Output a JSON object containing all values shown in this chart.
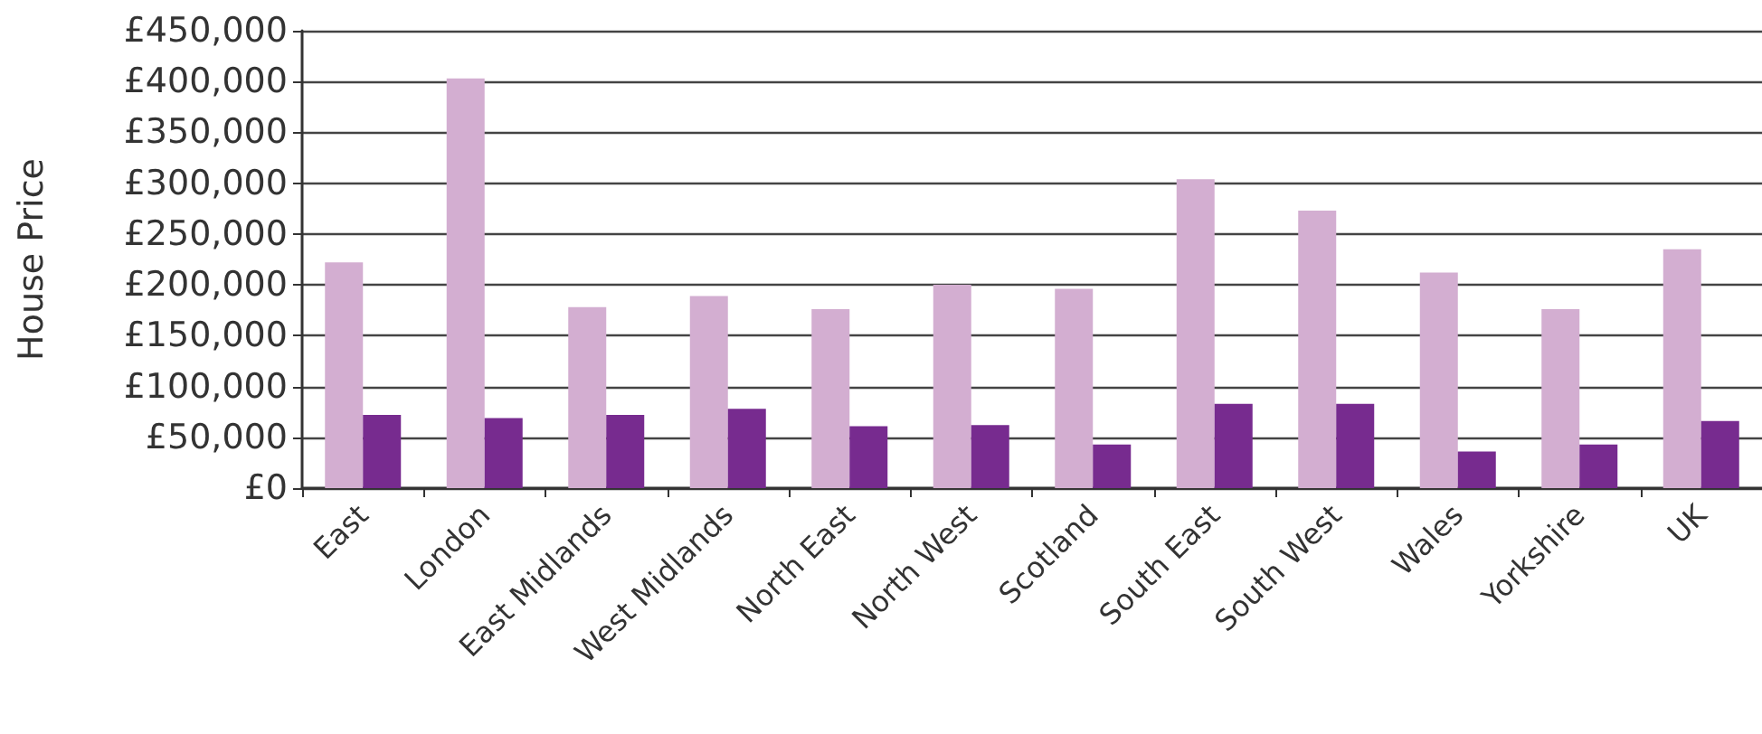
{
  "chart_data": {
    "type": "bar",
    "ylabel": "House Price",
    "categories": [
      "East",
      "London",
      "East Midlands",
      "West Midlands",
      "North East",
      "North West",
      "Scotland",
      "South East",
      "South West",
      "Wales",
      "Yorkshire",
      "UK"
    ],
    "series": [
      {
        "color": "#d3aed1",
        "values": [
          222000,
          403000,
          178000,
          189000,
          176000,
          200000,
          196000,
          304000,
          273000,
          212000,
          176000,
          235000
        ]
      },
      {
        "color": "#772b8f",
        "values": [
          72000,
          69000,
          72000,
          78000,
          61000,
          62000,
          43000,
          83000,
          83000,
          36000,
          43000,
          66000
        ]
      }
    ],
    "ylim": [
      0,
      450000
    ],
    "yticks": [
      {
        "value": 0,
        "label": "£0"
      },
      {
        "value": 50000,
        "label": "£50,000"
      },
      {
        "value": 100000,
        "label": "£100,000"
      },
      {
        "value": 150000,
        "label": "£150,000"
      },
      {
        "value": 200000,
        "label": "£200,000"
      },
      {
        "value": 250000,
        "label": "£250,000"
      },
      {
        "value": 300000,
        "label": "£300,000"
      },
      {
        "value": 350000,
        "label": "£350,000"
      },
      {
        "value": 400000,
        "label": "£400,000"
      },
      {
        "value": 450000,
        "label": "£450,000"
      }
    ],
    "grid": "y"
  }
}
